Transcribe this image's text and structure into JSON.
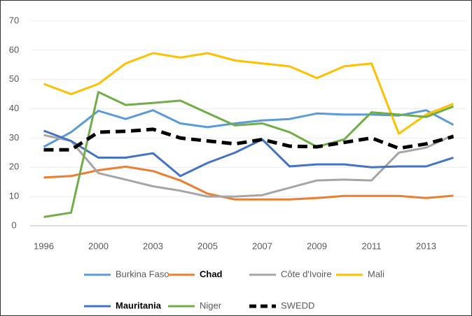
{
  "chart_data": {
    "type": "line",
    "categories": [
      "1996",
      null,
      "2000",
      null,
      "2003",
      null,
      "2005",
      null,
      "2007",
      null,
      "2009",
      null,
      "2011",
      null,
      "2013",
      null
    ],
    "ylim": [
      0,
      70
    ],
    "yticks": [
      0,
      10,
      20,
      30,
      40,
      50,
      60,
      70
    ],
    "grid": true,
    "series": [
      {
        "name": "Burkina Faso",
        "color": "#5b9bd5",
        "values": [
          27,
          32,
          39.3,
          36.5,
          39.5,
          35,
          33.7,
          35,
          36,
          36.5,
          38.4,
          38,
          38,
          37.7,
          39.5,
          34.5
        ]
      },
      {
        "name": "Chad",
        "color": "#ed7d31",
        "bold": true,
        "values": [
          16.5,
          17,
          19,
          20.2,
          18.7,
          15.5,
          11,
          9,
          9,
          9,
          9.5,
          10.2,
          10.2,
          10.2,
          9.5,
          10.3
        ]
      },
      {
        "name": "Côte d'Ivoire",
        "color": "#a5a5a5",
        "values": [
          31,
          29,
          18,
          15.8,
          13.5,
          12,
          10,
          10,
          10.5,
          13,
          15.5,
          15.8,
          15.5,
          25,
          26.7,
          31
        ]
      },
      {
        "name": "Mali",
        "color": "#ffc000",
        "values": [
          48.5,
          45,
          48.5,
          55.5,
          59,
          57.5,
          59,
          56.5,
          55.5,
          54.5,
          50.5,
          54.5,
          55.5,
          31.5,
          38,
          41.7
        ]
      },
      {
        "name": "Mauritania",
        "color": "#4472c4",
        "bold": true,
        "values": [
          32.5,
          29,
          23.3,
          23.3,
          24.8,
          17,
          21.5,
          25,
          29.5,
          20.3,
          21,
          21,
          20,
          20.3,
          20.3,
          23.3
        ]
      },
      {
        "name": "Niger",
        "color": "#70ad47",
        "values": [
          3,
          4.5,
          45.7,
          41.3,
          42,
          42.8,
          38.5,
          34.3,
          35,
          32,
          27,
          29.5,
          38.8,
          38,
          37.2,
          40.8
        ]
      },
      {
        "name": "SWEDD",
        "color": "#000000",
        "dash": true,
        "values": [
          26,
          26,
          32,
          32.3,
          33,
          30,
          29,
          28,
          29.5,
          27.2,
          27,
          28.5,
          30,
          26.5,
          28,
          30.5
        ]
      }
    ]
  }
}
